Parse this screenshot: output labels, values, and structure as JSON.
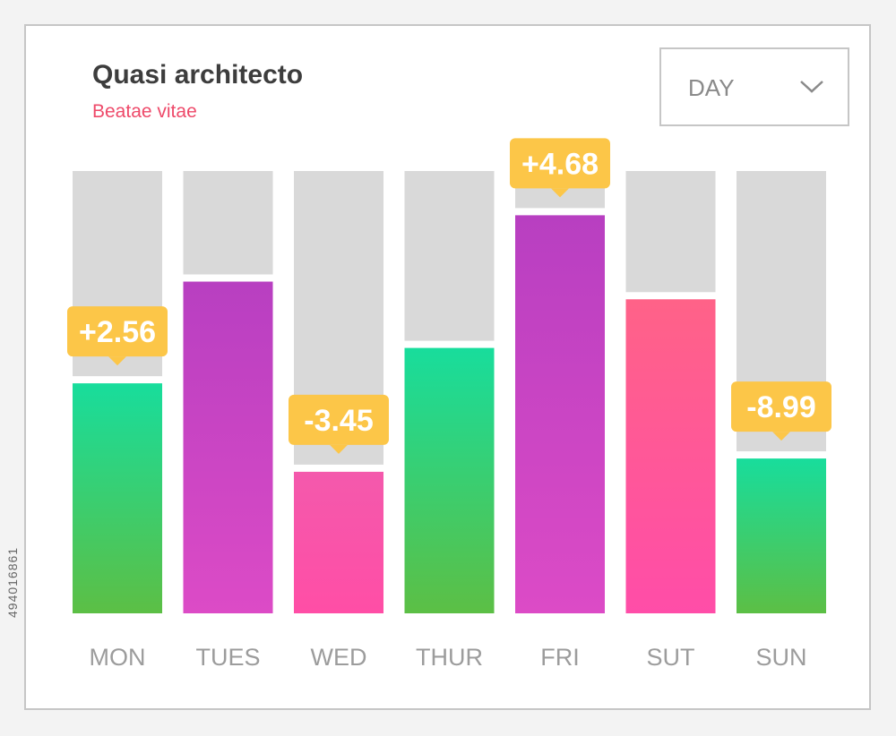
{
  "header": {
    "title": "Quasi architecto",
    "subtitle": "Beatae vitae"
  },
  "period_select": {
    "value": "DAY",
    "icon": "chevron-down-icon"
  },
  "chart_data": {
    "type": "bar",
    "title": "Quasi architecto",
    "subtitle": "Beatae vitae",
    "categories": [
      "MON",
      "TUES",
      "WED",
      "THUR",
      "FRI",
      "SUT",
      "SUN"
    ],
    "values": [
      52,
      75,
      32,
      60,
      90,
      71,
      35
    ],
    "ylim": [
      0,
      100
    ],
    "grid": false,
    "bar_colors": [
      "green",
      "purple",
      "pink",
      "green",
      "purple",
      "coral",
      "green"
    ],
    "callouts": [
      {
        "category": "MON",
        "label": "+2.56"
      },
      {
        "category": "WED",
        "label": "-3.45"
      },
      {
        "category": "FRI",
        "label": "+4.68"
      },
      {
        "category": "SUN",
        "label": "-8.99"
      }
    ]
  },
  "colors": {
    "track": "#d9d9d9",
    "callout": "#fcc648",
    "tick_label": "#9c9c9c",
    "title": "#3d3d3d",
    "subtitle": "#ee4a6a"
  },
  "watermark_id": "494016861"
}
